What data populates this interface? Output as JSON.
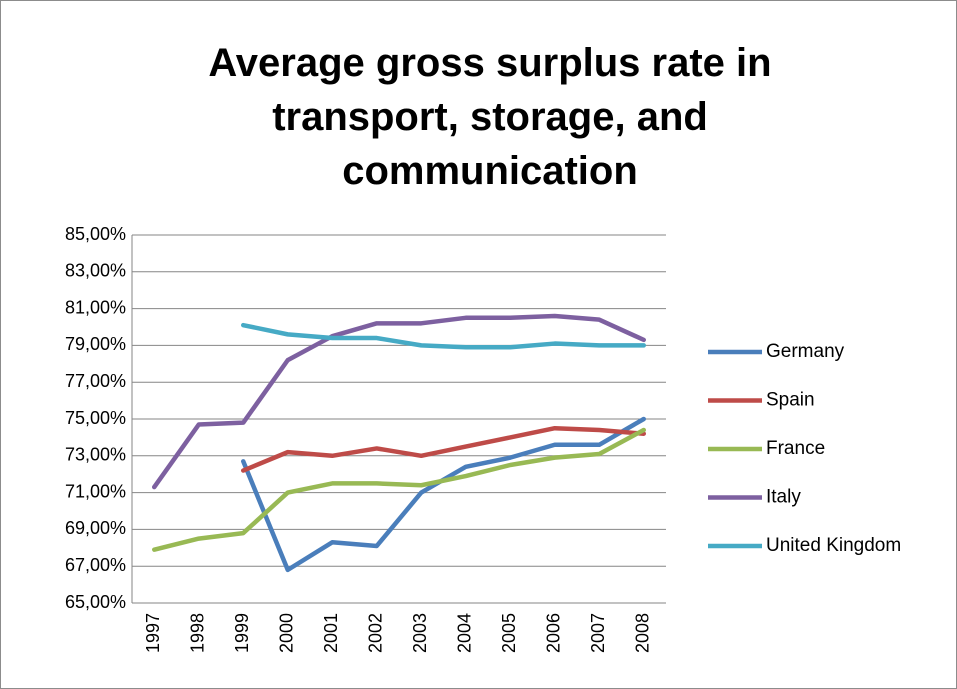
{
  "chart_data": {
    "type": "line",
    "title": "Average gross surplus rate in transport, storage, and communication",
    "categories": [
      "1997",
      "1998",
      "1999",
      "2000",
      "2001",
      "2002",
      "2003",
      "2004",
      "2005",
      "2006",
      "2007",
      "2008"
    ],
    "series": [
      {
        "name": "Germany",
        "color": "#4a7ebb",
        "values": [
          null,
          null,
          72.7,
          66.8,
          68.3,
          68.1,
          71.0,
          72.4,
          72.9,
          73.6,
          73.6,
          75.0
        ]
      },
      {
        "name": "Spain",
        "color": "#be4b48",
        "values": [
          null,
          null,
          72.2,
          73.2,
          73.0,
          73.4,
          73.0,
          73.5,
          74.0,
          74.5,
          74.4,
          74.2
        ]
      },
      {
        "name": "France",
        "color": "#98b954",
        "values": [
          67.9,
          68.5,
          68.8,
          71.0,
          71.5,
          71.5,
          71.4,
          71.9,
          72.5,
          72.9,
          73.1,
          74.4
        ]
      },
      {
        "name": "Italy",
        "color": "#7d60a0",
        "values": [
          71.3,
          74.7,
          74.8,
          78.2,
          79.5,
          80.2,
          80.2,
          80.5,
          80.5,
          80.6,
          80.4,
          79.3
        ]
      },
      {
        "name": "United Kingdom",
        "color": "#46aac5",
        "values": [
          null,
          null,
          80.1,
          79.6,
          79.4,
          79.4,
          79.0,
          78.9,
          78.9,
          79.1,
          79.0,
          79.0
        ]
      }
    ],
    "ylim": [
      65,
      85
    ],
    "yticks": [
      {
        "value": 65,
        "label": "65,00%"
      },
      {
        "value": 67,
        "label": "67,00%"
      },
      {
        "value": 69,
        "label": "69,00%"
      },
      {
        "value": 71,
        "label": "71,00%"
      },
      {
        "value": 73,
        "label": "73,00%"
      },
      {
        "value": 75,
        "label": "75,00%"
      },
      {
        "value": 77,
        "label": "77,00%"
      },
      {
        "value": 79,
        "label": "79,00%"
      },
      {
        "value": 81,
        "label": "81,00%"
      },
      {
        "value": 83,
        "label": "83,00%"
      },
      {
        "value": 85,
        "label": "85,00%"
      }
    ],
    "grid": true,
    "legend": "right"
  }
}
